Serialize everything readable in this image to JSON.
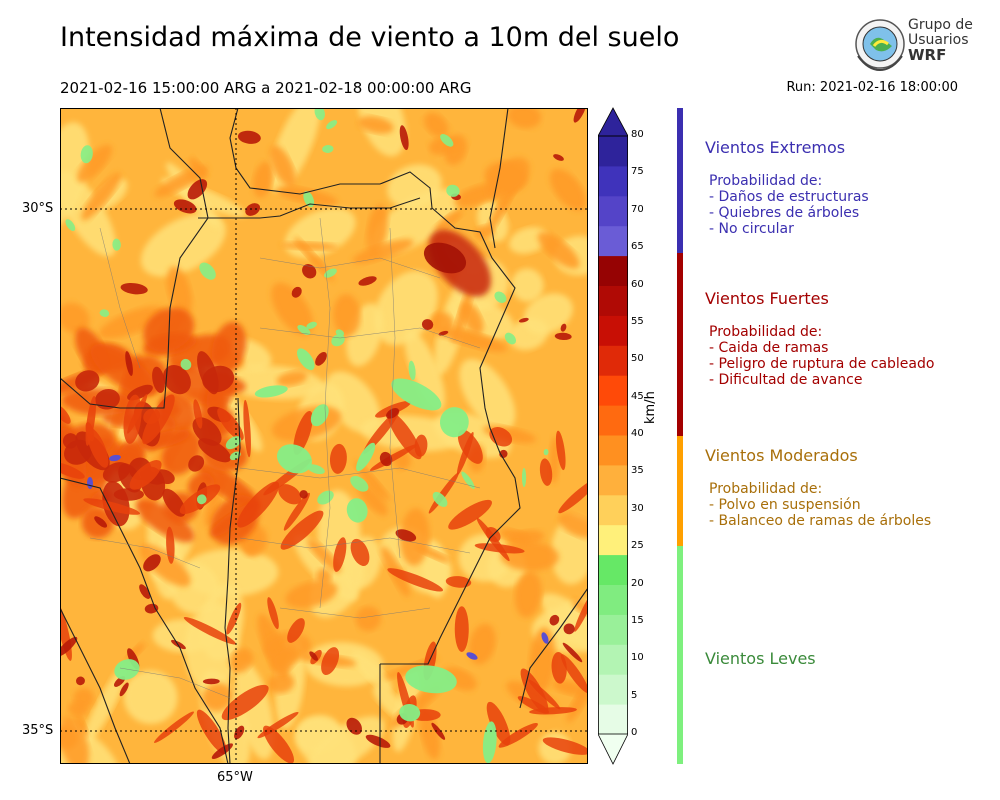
{
  "header": {
    "title": "Intensidad máxima de viento a 10m del suelo",
    "period": "2021-02-16 15:00:00 ARG  a  2021-02-18 00:00:00 ARG",
    "run": "Run: 2021-02-16 18:00:00"
  },
  "logo": {
    "line1": "Grupo de",
    "line2": "Usuarios",
    "line3": "WRF"
  },
  "map": {
    "lat_labels": [
      "30°S",
      "35°S"
    ],
    "lon_labels": [
      "65°W"
    ]
  },
  "colorbar": {
    "unit": "km/h",
    "ticks": [
      "0",
      "5",
      "10",
      "15",
      "20",
      "25",
      "30",
      "35",
      "40",
      "45",
      "50",
      "55",
      "60",
      "65",
      "70",
      "75",
      "80"
    ],
    "colors": [
      "#e6fce6",
      "#ccf8cc",
      "#b3f4b3",
      "#99f099",
      "#80ec80",
      "#66e866",
      "#fff07a",
      "#ffd05a",
      "#ffb03c",
      "#ff9020",
      "#ff6a10",
      "#ff4a08",
      "#e02a08",
      "#c80f05",
      "#b00a05",
      "#960303",
      "#6a5cd6",
      "#5444c8",
      "#3f33bb",
      "#2e239b"
    ]
  },
  "categories": [
    {
      "title": "Vientos Extremos",
      "color": "#3b2fb0",
      "lines": [
        "Probabilidad de:",
        "- Daños de estructuras",
        "- Quiebres de árboles",
        "- No circular"
      ]
    },
    {
      "title": "Vientos Fuertes",
      "color": "#a30000",
      "lines": [
        "Probabilidad de:",
        "- Caida de ramas",
        "- Peligro de ruptura de cableado",
        "- Dificultad de avance"
      ]
    },
    {
      "title": "Vientos Moderados",
      "color": "#a86f0a",
      "lines": [
        "Probabilidad de:",
        "- Polvo en suspensión",
        "- Balanceo de ramas de árboles"
      ]
    },
    {
      "title": "Vientos Leves",
      "color": "#3a8a3a",
      "lines": []
    }
  ]
}
